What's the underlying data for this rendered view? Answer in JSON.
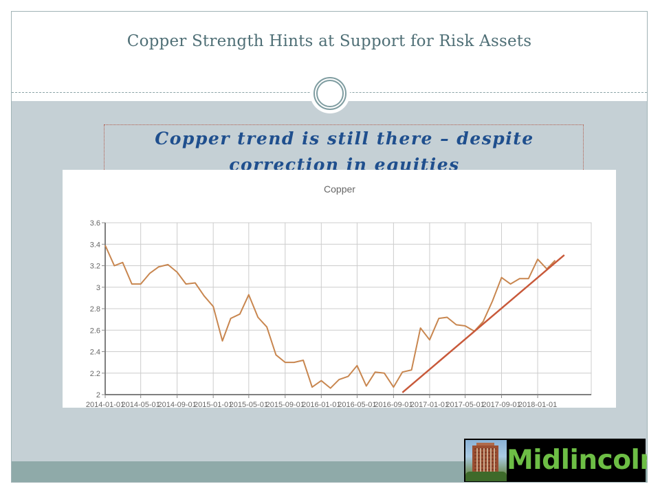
{
  "slide": {
    "title": "Copper Strength Hints at Support for Risk Assets",
    "subtitle": "Copper trend is still there – despite correction in equities",
    "logo_text": "Midlincoln",
    "colors": {
      "title": "#4f6f76",
      "subtitle": "#1f4f8e",
      "band": "#c5d0d5",
      "footer": "#8faaa9",
      "logo_text": "#6dbe45"
    }
  },
  "chart_data": {
    "type": "line",
    "title": "Copper",
    "xlabel": "",
    "ylabel": "",
    "x_range": [
      "2014-01-01",
      "2018-07-01"
    ],
    "ylim": [
      2,
      3.6
    ],
    "y_ticks": [
      "2",
      "2.2",
      "2.4",
      "2.6",
      "2.8",
      "3",
      "3.2",
      "3.4",
      "3.6"
    ],
    "x_ticks": [
      "2014-01-01",
      "2014-05-01",
      "2014-09-01",
      "2015-01-01",
      "2015-05-01",
      "2015-09-01",
      "2016-01-01",
      "2016-05-01",
      "2016-09-01",
      "2017-01-01",
      "2017-05-01",
      "2017-09-01",
      "2018-01-01"
    ],
    "grid": true,
    "legend": "none",
    "series": [
      {
        "color": "#c8864f",
        "x": [
          "2014-01-01",
          "2014-02-01",
          "2014-03-01",
          "2014-04-01",
          "2014-05-01",
          "2014-06-01",
          "2014-07-01",
          "2014-08-01",
          "2014-09-01",
          "2014-10-01",
          "2014-11-01",
          "2014-12-01",
          "2015-01-01",
          "2015-02-01",
          "2015-03-01",
          "2015-04-01",
          "2015-05-01",
          "2015-06-01",
          "2015-07-01",
          "2015-08-01",
          "2015-09-01",
          "2015-10-01",
          "2015-11-01",
          "2015-12-01",
          "2016-01-01",
          "2016-02-01",
          "2016-03-01",
          "2016-04-01",
          "2016-05-01",
          "2016-06-01",
          "2016-07-01",
          "2016-08-01",
          "2016-09-01",
          "2016-10-01",
          "2016-11-01",
          "2016-12-01",
          "2017-01-01",
          "2017-02-01",
          "2017-03-01",
          "2017-04-01",
          "2017-05-01",
          "2017-06-01",
          "2017-07-01",
          "2017-08-01",
          "2017-09-01",
          "2017-10-01",
          "2017-11-01",
          "2017-12-01",
          "2018-01-01",
          "2018-02-01",
          "2018-03-01"
        ],
        "values": [
          3.39,
          3.2,
          3.23,
          3.03,
          3.03,
          3.13,
          3.19,
          3.21,
          3.14,
          3.03,
          3.04,
          2.92,
          2.82,
          2.5,
          2.71,
          2.75,
          2.93,
          2.72,
          2.63,
          2.37,
          2.3,
          2.3,
          2.32,
          2.07,
          2.13,
          2.06,
          2.14,
          2.17,
          2.27,
          2.08,
          2.21,
          2.2,
          2.07,
          2.21,
          2.23,
          2.62,
          2.51,
          2.71,
          2.72,
          2.65,
          2.64,
          2.59,
          2.68,
          2.87,
          3.09,
          3.03,
          3.08,
          3.08,
          3.26,
          3.17,
          3.25
        ]
      },
      {
        "color": "#c8593a",
        "x": [
          "2016-10-01",
          "2018-04-01"
        ],
        "values": [
          2.02,
          3.3
        ]
      }
    ]
  }
}
